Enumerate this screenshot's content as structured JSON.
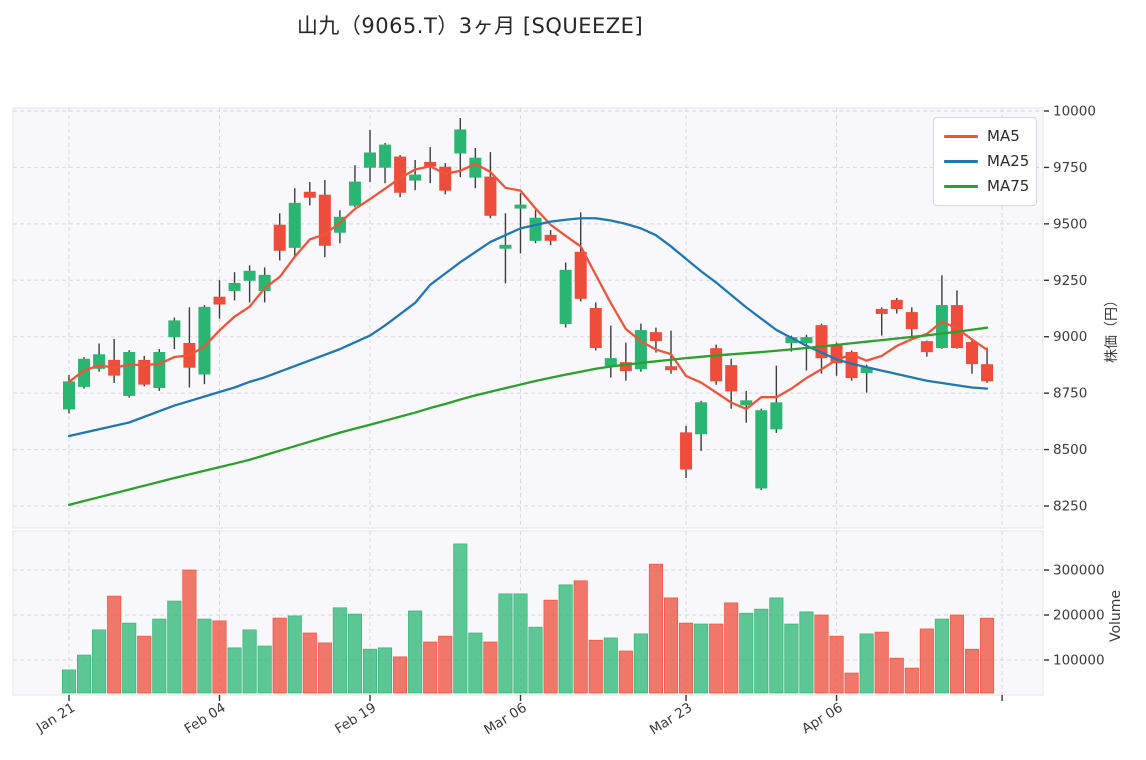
{
  "title": "山九（9065.T）3ヶ月 [SQUEEZE]",
  "legend": {
    "items": [
      {
        "label": "MA5",
        "color": "#ef553b"
      },
      {
        "label": "MA25",
        "color": "#1f77b4"
      },
      {
        "label": "MA75",
        "color": "#2ca02c"
      }
    ]
  },
  "price_axis": {
    "label": "株価（円）",
    "ticks": [
      "10000",
      "9750",
      "9500",
      "9250",
      "9000",
      "8750",
      "8500",
      "8250"
    ],
    "tick_values": [
      10000,
      9750,
      9500,
      9250,
      9000,
      8750,
      8500,
      8250
    ]
  },
  "volume_axis": {
    "label": "Volume",
    "ticks": [
      "300000",
      "200000",
      "100000"
    ],
    "tick_values": [
      300000,
      200000,
      100000
    ]
  },
  "x_axis": {
    "ticks": [
      {
        "index": 1,
        "label": "Jan 21"
      },
      {
        "index": 11,
        "label": "Feb 04"
      },
      {
        "index": 21,
        "label": "Feb 19"
      },
      {
        "index": 31,
        "label": "Mar 06"
      },
      {
        "index": 42,
        "label": "Mar 23"
      },
      {
        "index": 52,
        "label": "Apr 06"
      },
      {
        "index": 63,
        "label": ""
      }
    ]
  },
  "colors": {
    "up": "#2ab573",
    "down": "#ee4d3b",
    "wick": "#3d3d3d",
    "ma5": "#ef553b",
    "ma25": "#1f77b4",
    "ma75": "#2ca02c",
    "grid": "#d9d9de",
    "panel_bg": "#f8f8fa",
    "panel_border": "#e6e6ea",
    "tick_text": "#3b3b3b",
    "axis_tick": "#333333"
  },
  "chart_data": {
    "type": "candlestick",
    "title": "山九（9065.T）3ヶ月 [SQUEEZE]",
    "ylabel_price": "株価（円）",
    "ylabel_volume": "Volume",
    "price_ylim": [
      8155,
      10015
    ],
    "volume_ylim": [
      0,
      386000
    ],
    "legend_position": "top-right",
    "grid": true,
    "columns": [
      "open",
      "high",
      "low",
      "close",
      "volume"
    ],
    "candles": [
      [
        8680,
        8830,
        8660,
        8800,
        78000
      ],
      [
        8780,
        8910,
        8770,
        8900,
        111000
      ],
      [
        8860,
        8970,
        8845,
        8920,
        167000
      ],
      [
        8895,
        8990,
        8795,
        8830,
        242000
      ],
      [
        8740,
        8940,
        8730,
        8930,
        182000
      ],
      [
        8895,
        8915,
        8780,
        8790,
        153000
      ],
      [
        8775,
        8945,
        8760,
        8930,
        191000
      ],
      [
        9000,
        9085,
        8945,
        9070,
        231000
      ],
      [
        8970,
        9130,
        8775,
        8865,
        300000
      ],
      [
        8835,
        9140,
        8790,
        9130,
        191000
      ],
      [
        9175,
        9250,
        9080,
        9145,
        187000
      ],
      [
        9205,
        9286,
        9161,
        9236,
        127000
      ],
      [
        9250,
        9316,
        9152,
        9290,
        167000
      ],
      [
        9205,
        9307,
        9152,
        9272,
        131000
      ],
      [
        9494,
        9547,
        9338,
        9383,
        193000
      ],
      [
        9396,
        9658,
        9352,
        9591,
        198000
      ],
      [
        9640,
        9685,
        9582,
        9618,
        160000
      ],
      [
        9627,
        9694,
        9352,
        9405,
        138000
      ],
      [
        9463,
        9560,
        9414,
        9529,
        216000
      ],
      [
        9583,
        9760,
        9574,
        9685,
        202000
      ],
      [
        9751,
        9916,
        9685,
        9814,
        124000
      ],
      [
        9751,
        9858,
        9680,
        9849,
        127000
      ],
      [
        9796,
        9805,
        9618,
        9640,
        107000
      ],
      [
        9694,
        9783,
        9649,
        9716,
        209000
      ],
      [
        9772,
        9840,
        9680,
        9756,
        140000
      ],
      [
        9751,
        9769,
        9631,
        9649,
        153000
      ],
      [
        9814,
        9969,
        9707,
        9916,
        358000
      ],
      [
        9707,
        9836,
        9658,
        9791,
        160000
      ],
      [
        9707,
        9818,
        9525,
        9538,
        140000
      ],
      [
        9392,
        9547,
        9236,
        9405,
        247000
      ],
      [
        9570,
        9636,
        9369,
        9583,
        247000
      ],
      [
        9427,
        9561,
        9414,
        9525,
        173000
      ],
      [
        9449,
        9472,
        9405,
        9427,
        233000
      ],
      [
        9058,
        9329,
        9041,
        9294,
        267000
      ],
      [
        9374,
        9551,
        9156,
        9170,
        276000
      ],
      [
        9125,
        9152,
        8939,
        8952,
        144000
      ],
      [
        8872,
        9049,
        8819,
        8903,
        149000
      ],
      [
        8885,
        8974,
        8805,
        8850,
        120000
      ],
      [
        8858,
        9058,
        8845,
        9027,
        158000
      ],
      [
        9018,
        9040,
        8930,
        8983,
        313000
      ],
      [
        8867,
        9027,
        8836,
        8854,
        238000
      ],
      [
        8574,
        8605,
        8374,
        8414,
        182000
      ],
      [
        8570,
        8716,
        8494,
        8707,
        180000
      ],
      [
        8947,
        8965,
        8787,
        8805,
        180000
      ],
      [
        8872,
        8903,
        8681,
        8760,
        227000
      ],
      [
        8698,
        8760,
        8619,
        8716,
        204000
      ],
      [
        8330,
        8681,
        8321,
        8672,
        213000
      ],
      [
        8592,
        8872,
        8574,
        8707,
        238000
      ],
      [
        8974,
        9005,
        8934,
        8996,
        180000
      ],
      [
        8974,
        9009,
        8850,
        8996,
        207000
      ],
      [
        9049,
        9058,
        8836,
        8907,
        200000
      ],
      [
        8961,
        8974,
        8827,
        8885,
        153000
      ],
      [
        8930,
        8939,
        8805,
        8819,
        71000
      ],
      [
        8841,
        8876,
        8752,
        8863,
        158000
      ],
      [
        9121,
        9130,
        9005,
        9103,
        162000
      ],
      [
        9161,
        9172,
        9103,
        9125,
        104000
      ],
      [
        9107,
        9130,
        9000,
        9036,
        82000
      ],
      [
        8978,
        8983,
        8912,
        8934,
        169000
      ],
      [
        8952,
        9272,
        8947,
        9138,
        191000
      ],
      [
        9138,
        9205,
        8947,
        8952,
        200000
      ],
      [
        8974,
        8983,
        8836,
        8881,
        124000
      ],
      [
        8876,
        8952,
        8796,
        8805,
        193000
      ]
    ],
    "series": [
      {
        "name": "MA5",
        "values": [
          8800,
          8850,
          8873,
          8863,
          8876,
          8874,
          8880,
          8910,
          8917,
          8957,
          9028,
          9089,
          9133,
          9215,
          9265,
          9354,
          9431,
          9454,
          9505,
          9566,
          9610,
          9656,
          9703,
          9741,
          9755,
          9722,
          9735,
          9766,
          9730,
          9660,
          9647,
          9568,
          9496,
          9447,
          9400,
          9274,
          9149,
          9034,
          8980,
          8943,
          8923,
          8826,
          8797,
          8753,
          8708,
          8680,
          8732,
          8732,
          8770,
          8817,
          8856,
          8898,
          8921,
          8894,
          8915,
          8959,
          8989,
          9012,
          9067,
          9037,
          8988,
          8942
        ]
      },
      {
        "name": "MA25",
        "values": [
          8560,
          8575,
          8590,
          8605,
          8620,
          8645,
          8670,
          8695,
          8715,
          8735,
          8755,
          8775,
          8800,
          8820,
          8845,
          8870,
          8895,
          8920,
          8945,
          8975,
          9005,
          9050,
          9100,
          9150,
          9230,
          9280,
          9330,
          9375,
          9420,
          9450,
          9480,
          9495,
          9510,
          9518,
          9525,
          9525,
          9515,
          9500,
          9480,
          9450,
          9400,
          9345,
          9290,
          9240,
          9185,
          9130,
          9080,
          9030,
          8995,
          8960,
          8930,
          8900,
          8880,
          8865,
          8850,
          8835,
          8820,
          8805,
          8795,
          8785,
          8775,
          8770
        ]
      },
      {
        "name": "MA75",
        "values": [
          8255,
          8272,
          8289,
          8306,
          8323,
          8340,
          8357,
          8374,
          8390,
          8406,
          8422,
          8438,
          8455,
          8475,
          8495,
          8515,
          8535,
          8555,
          8575,
          8593,
          8610,
          8628,
          8646,
          8664,
          8684,
          8702,
          8722,
          8740,
          8756,
          8772,
          8788,
          8804,
          8818,
          8832,
          8845,
          8858,
          8868,
          8876,
          8884,
          8891,
          8898,
          8905,
          8911,
          8917,
          8922,
          8927,
          8932,
          8938,
          8944,
          8950,
          8957,
          8964,
          8971,
          8978,
          8985,
          8992,
          8999,
          9006,
          9014,
          9022,
          9031,
          9040
        ]
      }
    ]
  }
}
